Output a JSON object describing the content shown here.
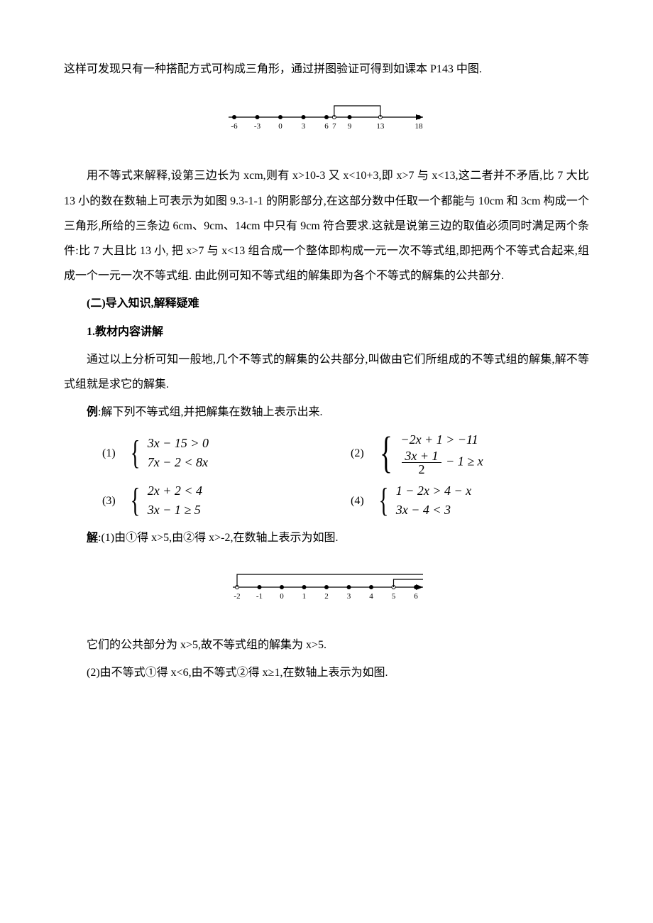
{
  "p1": "这样可发现只有一种搭配方式可构成三角形，通过拼图验证可得到如课本 P143 中图.",
  "numline1": {
    "ticks": [
      -6,
      -3,
      0,
      3,
      6,
      7,
      9,
      13,
      18
    ],
    "labels": [
      "-6",
      "-3",
      "0",
      "3",
      "6",
      "7",
      "9",
      "13",
      "18"
    ],
    "bracket_open_at": 7,
    "bracket_close_at": 13,
    "open_left": true,
    "open_right": true,
    "axis_color": "#000",
    "fill_color": "#000"
  },
  "p2": "用不等式来解释,设第三边长为 xcm,则有 x>10-3 又 x<10+3,即 x>7 与 x<13,这二者并不矛盾,比 7 大比 13 小的数在数轴上可表示为如图 9.3-1-1 的阴影部分,在这部分数中任取一个都能与 10cm 和 3cm 构成一个三角形,所给的三条边 6cm、9cm、14cm 中只有 9cm 符合要求.这就是说第三边的取值必须同时满足两个条件:比 7 大且比 13 小,  把 x>7 与 x<13 组合成一个整体即构成一元一次不等式组,即把两个不等式合起来,组成一个一元一次不等式组.  由此例可知不等式组的解集即为各个不等式的解集的公共部分.",
  "h1": "(二)导入知识,解释疑难",
  "h2": "1.教材内容讲解",
  "p3": "通过以上分析可知一般地,几个不等式的解集的公共部分,叫做由它们所组成的不等式组的解集,解不等式组就是求它的解集.",
  "ex_intro_bold": "例",
  "ex_intro_rest": ":解下列不等式组,并把解集在数轴上表示出来.",
  "eqs": {
    "e1": {
      "label": "(1)",
      "l1": "3x − 15 > 0",
      "l2": "7x − 2 < 8x"
    },
    "e2": {
      "label": "(2)",
      "l1": "−2x + 1 > −11",
      "frac_num": "3x + 1",
      "frac_den": "2",
      "l2_tail": " − 1 ≥ x"
    },
    "e3": {
      "label": "(3)",
      "l1": "2x + 2 < 4",
      "l2": "3x − 1 ≥ 5"
    },
    "e4": {
      "label": "(4)",
      "l1": "1 − 2x > 4 − x",
      "l2": "3x − 4 < 3"
    }
  },
  "sol_bold": "解",
  "sol1": ":(1)由①得 x>5,由②得 x>-2,在数轴上表示为如图.",
  "numline2": {
    "ticks": [
      -2,
      -1,
      0,
      1,
      2,
      3,
      4,
      5,
      6
    ],
    "labels": [
      "-2",
      "-1",
      "0",
      "1",
      "2",
      "3",
      "4",
      "5",
      "6"
    ],
    "bracket1_at": -2,
    "bracket2_at": 5,
    "open1": true,
    "open2": true,
    "axis_color": "#000",
    "fill_color": "#000"
  },
  "p_common": "它们的公共部分为 x>5,故不等式组的解集为 x>5.",
  "p_sol2": "(2)由不等式①得 x<6,由不等式②得 x≥1,在数轴上表示为如图."
}
